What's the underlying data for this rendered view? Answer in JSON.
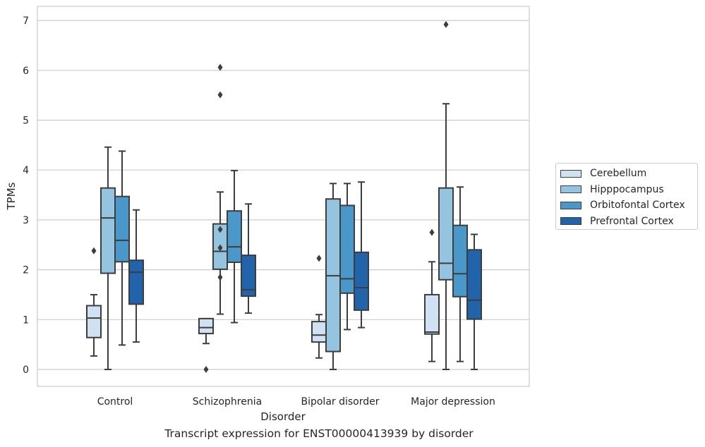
{
  "chart_data": {
    "type": "box",
    "title": "",
    "caption": "Transcript expression for ENST00000413939 by disorder",
    "xlabel": "Disorder",
    "ylabel": "TPMs",
    "ylim": [
      -0.33,
      7.3
    ],
    "yticks": [
      "0",
      "1",
      "2",
      "3",
      "4",
      "5",
      "6",
      "7"
    ],
    "grid": "horizontal",
    "legend_placement": "right",
    "categories": [
      "Control",
      "Schizophrenia",
      "Bipolar disorder",
      "Major depression"
    ],
    "series": [
      {
        "name": "Cerebellum",
        "color": "#d0e1f2",
        "boxes": [
          {
            "whislo": 0.27,
            "q1": 0.64,
            "med": 1.03,
            "q3": 1.28,
            "whishi": 1.5,
            "fliers": [
              2.38
            ]
          },
          {
            "whislo": 0.52,
            "q1": 0.72,
            "med": 0.84,
            "q3": 1.02,
            "whishi": 1.02,
            "fliers": [
              0.0
            ]
          },
          {
            "whislo": 0.23,
            "q1": 0.55,
            "med": 0.69,
            "q3": 0.96,
            "whishi": 1.1,
            "fliers": [
              2.23
            ]
          },
          {
            "whislo": 0.16,
            "q1": 0.71,
            "med": 0.75,
            "q3": 1.5,
            "whishi": 2.16,
            "fliers": [
              2.75
            ]
          }
        ]
      },
      {
        "name": "Hipppocampus",
        "color": "#94c4df",
        "boxes": [
          {
            "whislo": 0.0,
            "q1": 1.93,
            "med": 3.04,
            "q3": 3.64,
            "whishi": 4.46,
            "fliers": []
          },
          {
            "whislo": 1.11,
            "q1": 2.01,
            "med": 2.37,
            "q3": 2.92,
            "whishi": 3.56,
            "fliers": [
              1.85,
              2.44,
              2.81,
              5.51,
              6.06
            ]
          },
          {
            "whislo": 0.0,
            "q1": 0.36,
            "med": 1.88,
            "q3": 3.42,
            "whishi": 3.73,
            "fliers": []
          },
          {
            "whislo": 0.0,
            "q1": 1.8,
            "med": 2.13,
            "q3": 3.64,
            "whishi": 5.33,
            "fliers": [
              6.92
            ]
          }
        ]
      },
      {
        "name": "Orbitofontal Cortex",
        "color": "#4a98c9",
        "boxes": [
          {
            "whislo": 0.49,
            "q1": 2.16,
            "med": 2.59,
            "q3": 3.47,
            "whishi": 4.38,
            "fliers": []
          },
          {
            "whislo": 0.94,
            "q1": 2.15,
            "med": 2.46,
            "q3": 3.18,
            "whishi": 3.99,
            "fliers": []
          },
          {
            "whislo": 0.8,
            "q1": 1.53,
            "med": 1.82,
            "q3": 3.29,
            "whishi": 3.73,
            "fliers": []
          },
          {
            "whislo": 0.16,
            "q1": 1.46,
            "med": 1.92,
            "q3": 2.89,
            "whishi": 3.66,
            "fliers": []
          }
        ]
      },
      {
        "name": "Prefrontal Cortex",
        "color": "#2164ab",
        "boxes": [
          {
            "whislo": 0.55,
            "q1": 1.31,
            "med": 1.95,
            "q3": 2.19,
            "whishi": 3.2,
            "fliers": []
          },
          {
            "whislo": 1.13,
            "q1": 1.47,
            "med": 1.6,
            "q3": 2.29,
            "whishi": 3.32,
            "fliers": []
          },
          {
            "whislo": 0.84,
            "q1": 1.19,
            "med": 1.64,
            "q3": 2.35,
            "whishi": 3.76,
            "fliers": []
          },
          {
            "whislo": 0.0,
            "q1": 1.01,
            "med": 1.39,
            "q3": 2.4,
            "whishi": 2.71,
            "fliers": []
          }
        ]
      }
    ]
  }
}
